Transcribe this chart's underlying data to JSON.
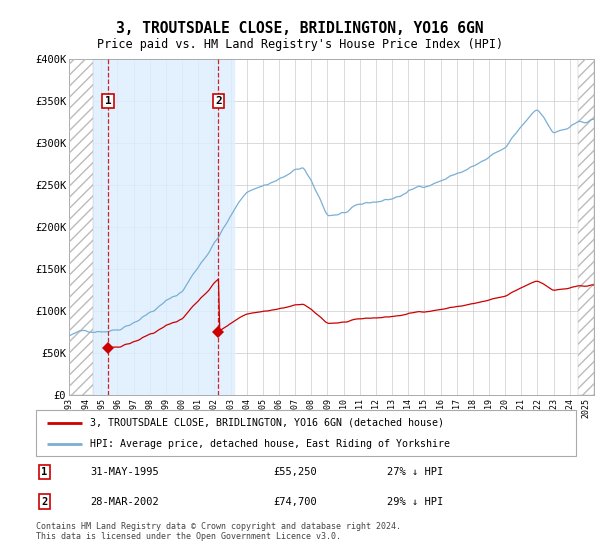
{
  "title": "3, TROUTSDALE CLOSE, BRIDLINGTON, YO16 6GN",
  "subtitle": "Price paid vs. HM Land Registry's House Price Index (HPI)",
  "legend_line1": "3, TROUTSDALE CLOSE, BRIDLINGTON, YO16 6GN (detached house)",
  "legend_line2": "HPI: Average price, detached house, East Riding of Yorkshire",
  "footnote": "Contains HM Land Registry data © Crown copyright and database right 2024.\nThis data is licensed under the Open Government Licence v3.0.",
  "transaction1_date": "31-MAY-1995",
  "transaction1_price": "£55,250",
  "transaction1_hpi": "27% ↓ HPI",
  "transaction1_year": 1995.416,
  "transaction1_value": 55250,
  "transaction2_date": "28-MAR-2002",
  "transaction2_price": "£74,700",
  "transaction2_hpi": "29% ↓ HPI",
  "transaction2_year": 2002.25,
  "transaction2_value": 74700,
  "ylim": [
    0,
    400000
  ],
  "xlim_start": 1993.0,
  "xlim_end": 2025.5,
  "hatch_left_end": 1994.5,
  "hatch_right_start": 2024.5,
  "blue_shade_start": 1994.5,
  "blue_shade_end": 2003.2,
  "red_line_color": "#cc0000",
  "blue_line_color": "#7aafd4",
  "marker_color": "#cc0000",
  "blue_shade_color": "#ddeeff",
  "grid_color": "#cccccc",
  "bg_color": "#ffffff",
  "box_color": "#cc0000",
  "yticks": [
    0,
    50000,
    100000,
    150000,
    200000,
    250000,
    300000,
    350000,
    400000
  ],
  "ytick_labels": [
    "£0",
    "£50K",
    "£100K",
    "£150K",
    "£200K",
    "£250K",
    "£300K",
    "£350K",
    "£400K"
  ]
}
